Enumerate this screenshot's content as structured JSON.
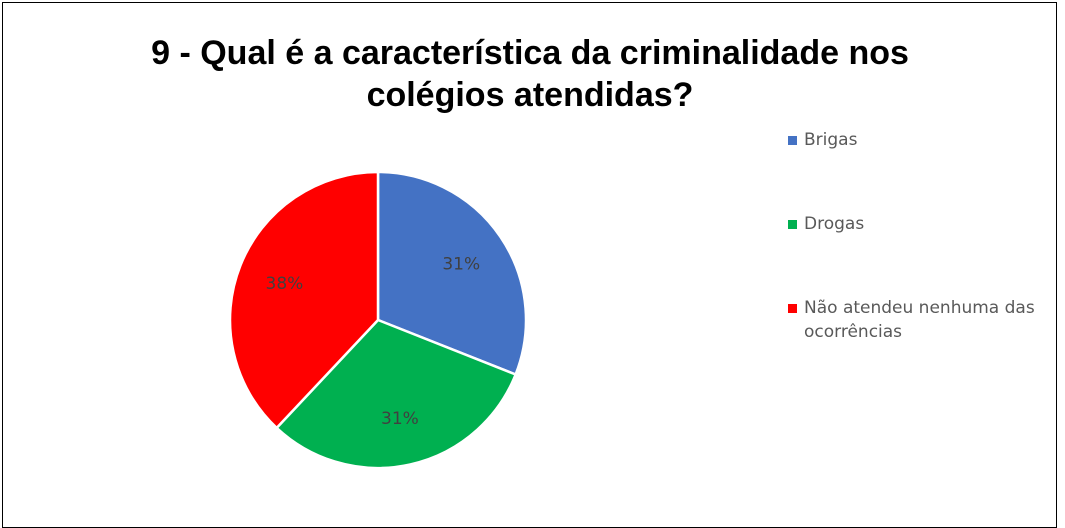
{
  "chart_data": {
    "type": "pie",
    "title_lines": [
      "9 - Qual é a característica da criminalidade nos",
      "colégios atendidas?"
    ],
    "categories": [
      "Brigas",
      "Drogas",
      "Não atendeu nenhuma das ocorrências"
    ],
    "values": [
      31,
      31,
      38
    ],
    "labels": [
      "31%",
      "31%",
      "38%"
    ],
    "colors": [
      "#4472C4",
      "#00B050",
      "#FF0000"
    ],
    "legend_position": "right"
  }
}
